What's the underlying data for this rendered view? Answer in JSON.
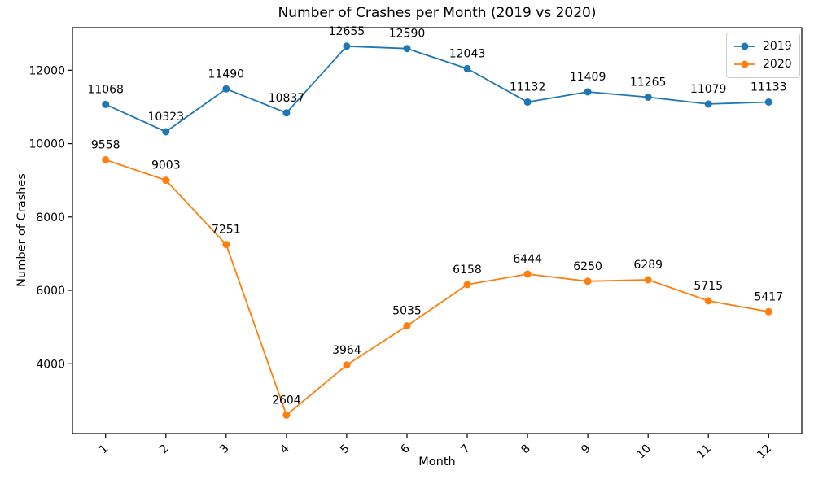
{
  "chart_data": {
    "type": "line",
    "title": "Number of Crashes per Month (2019 vs 2020)",
    "xlabel": "Month",
    "ylabel": "Number of Crashes",
    "categories": [
      "1",
      "2",
      "3",
      "4",
      "5",
      "6",
      "7",
      "8",
      "9",
      "10",
      "11",
      "12"
    ],
    "series": [
      {
        "name": "2019",
        "color": "#1f77b4",
        "values": [
          11068,
          10323,
          11490,
          10837,
          12655,
          12590,
          12043,
          11132,
          11409,
          11265,
          11079,
          11133
        ]
      },
      {
        "name": "2020",
        "color": "#ff7f0e",
        "values": [
          9558,
          9003,
          7251,
          2604,
          3964,
          5035,
          6158,
          6444,
          6250,
          6289,
          5715,
          5417
        ]
      }
    ],
    "yticks": [
      4000,
      6000,
      8000,
      10000,
      12000
    ],
    "ylim": [
      2100,
      13160
    ],
    "xlim": [
      0.45,
      12.55
    ],
    "xtick_rotation": 45,
    "grid": false,
    "marker": "circle",
    "point_labels": true,
    "legend_position": "upper right",
    "axes_color": "#000000",
    "spine_box": true
  }
}
